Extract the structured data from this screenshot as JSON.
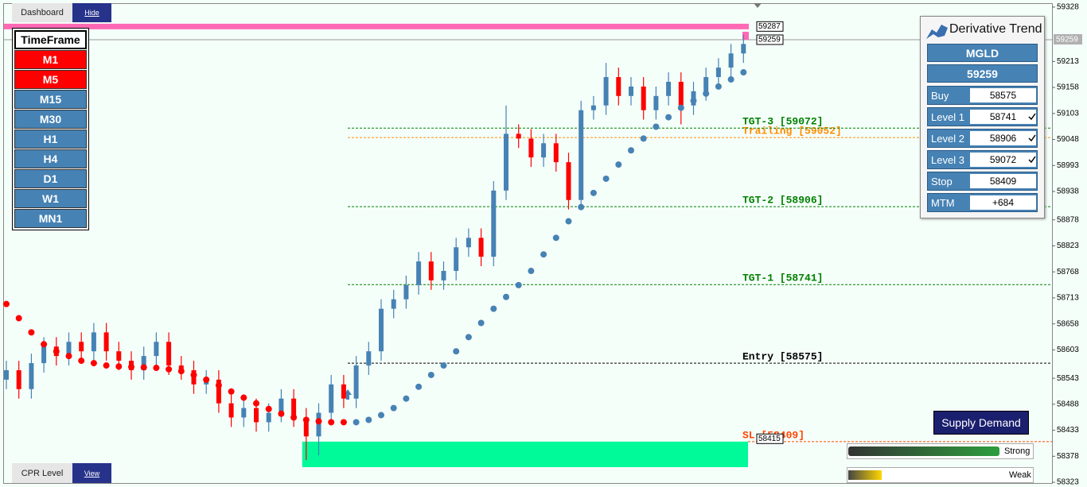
{
  "chart_data": {
    "type": "candlestick",
    "ylim": [
      58313,
      59343
    ],
    "yticks": [
      59328,
      59213,
      59158,
      59103,
      59048,
      58993,
      58938,
      58878,
      58823,
      58768,
      58713,
      58658,
      58603,
      58543,
      58488,
      58433,
      58378,
      58323
    ],
    "up_color": "#4682b4",
    "down_color": "#ff0000",
    "open": [
      58540,
      58560,
      58520,
      58575,
      58610,
      58590,
      58620,
      58600,
      58640,
      58600,
      58580,
      58560,
      58590,
      58620,
      58570,
      58560,
      58530,
      58540,
      58490,
      58460,
      58480,
      58450,
      58470,
      58500,
      58460,
      58420,
      58470,
      58530,
      58500,
      58570,
      58600,
      58690,
      58710,
      58740,
      58790,
      58750,
      58770,
      58820,
      58840,
      58800,
      58940,
      59060,
      59050,
      59010,
      59040,
      59000,
      58920,
      59110,
      59120,
      59180,
      59140,
      59160,
      59110,
      59140,
      59170,
      59120,
      59150,
      59180,
      59200,
      59230
    ],
    "high": [
      58580,
      58580,
      58595,
      58630,
      58630,
      58640,
      58640,
      58660,
      58660,
      58620,
      58600,
      58610,
      58640,
      58640,
      58590,
      58580,
      58560,
      58560,
      58510,
      58500,
      58500,
      58490,
      58520,
      58520,
      58480,
      58490,
      58550,
      58550,
      58590,
      58620,
      58710,
      58730,
      58760,
      58810,
      58810,
      58790,
      58840,
      58860,
      58860,
      58960,
      59120,
      59080,
      59070,
      59060,
      59060,
      59020,
      59130,
      59140,
      59210,
      59200,
      59180,
      59180,
      59160,
      59190,
      59190,
      59170,
      59200,
      59220,
      59250,
      59270
    ],
    "low": [
      58520,
      58500,
      58500,
      58555,
      58570,
      58570,
      58580,
      58580,
      58580,
      58560,
      58540,
      58540,
      58570,
      58550,
      58540,
      58510,
      58510,
      58470,
      58440,
      58440,
      58430,
      58430,
      58450,
      58440,
      58370,
      58380,
      58450,
      58480,
      58480,
      58550,
      58580,
      58670,
      58690,
      58720,
      58730,
      58730,
      58750,
      58800,
      58780,
      58780,
      58920,
      59030,
      58990,
      58990,
      58980,
      58900,
      58900,
      59090,
      59100,
      59120,
      59120,
      59090,
      59090,
      59120,
      59080,
      59100,
      59130,
      59160,
      59180,
      59210
    ],
    "close": [
      58560,
      58520,
      58575,
      58610,
      58590,
      58620,
      58600,
      58640,
      58600,
      58580,
      58560,
      58590,
      58620,
      58570,
      58560,
      58530,
      58540,
      58490,
      58460,
      58480,
      58450,
      58470,
      58500,
      58460,
      58420,
      58470,
      58530,
      58500,
      58570,
      58600,
      58690,
      58710,
      58740,
      58790,
      58750,
      58770,
      58820,
      58840,
      58800,
      58940,
      59060,
      59050,
      59010,
      59040,
      59000,
      58920,
      59110,
      59120,
      59180,
      59140,
      59160,
      59110,
      59140,
      59170,
      59120,
      59150,
      59180,
      59200,
      59230,
      59250
    ],
    "dots": [
      {
        "color": "#ff0000",
        "values": [
          58700,
          58670,
          58640,
          58615,
          58600,
          58590,
          58580,
          58575,
          58570,
          58568,
          58567,
          58566,
          58565,
          58562,
          58558,
          58550,
          58540,
          58528,
          58515,
          58502,
          58490,
          58478,
          58468,
          58460,
          58455,
          58452,
          58450,
          58450,
          null,
          null,
          null,
          null,
          null,
          null,
          null,
          null,
          null,
          null,
          null,
          null,
          null,
          null,
          null,
          null,
          null,
          null,
          null,
          null,
          null,
          null,
          null,
          null,
          null,
          null,
          null,
          null,
          null,
          null,
          null,
          null
        ]
      },
      {
        "color": "#4682b4",
        "values": [
          null,
          null,
          null,
          null,
          null,
          null,
          null,
          null,
          null,
          null,
          null,
          null,
          null,
          null,
          null,
          null,
          null,
          null,
          null,
          null,
          null,
          null,
          null,
          null,
          null,
          null,
          null,
          null,
          58450,
          58455,
          58465,
          58480,
          58500,
          58525,
          58550,
          58570,
          58600,
          58630,
          58660,
          58690,
          58715,
          58740,
          58770,
          58805,
          58840,
          58875,
          58905,
          58935,
          58965,
          58995,
          59025,
          59050,
          59075,
          59095,
          59115,
          59130,
          59145,
          59160,
          59175,
          59190
        ]
      }
    ],
    "levels": [
      {
        "name": "Trailing [59052]",
        "value": 59052,
        "color": "#ff8c00"
      },
      {
        "name": "TGT-3 [59072]",
        "value": 59072,
        "color": "#008000"
      },
      {
        "name": "TGT-2 [58906]",
        "value": 58906,
        "color": "#008000"
      },
      {
        "name": "TGT-1 [58741]",
        "value": 58741,
        "color": "#008000"
      },
      {
        "name": "Entry [58575]",
        "value": 58575,
        "color": "#000000"
      },
      {
        "name": "SL [58409]",
        "value": 58409,
        "color": "#ff4500"
      }
    ],
    "resistance": {
      "value": 59287,
      "color": "#ff69b4"
    },
    "zone": {
      "top": 58409,
      "bottom": 58355,
      "color": "#00fa9a"
    },
    "current_price": 59259,
    "price_tags": [
      59287,
      59259,
      58415
    ]
  },
  "dashboard": {
    "tab": "Dashboard",
    "action": "Hide"
  },
  "timeframe": {
    "title": "TimeFrame",
    "buttons": [
      {
        "label": "M1",
        "active": true
      },
      {
        "label": "M5",
        "active": true
      },
      {
        "label": "M15",
        "active": false
      },
      {
        "label": "M30",
        "active": false
      },
      {
        "label": "H1",
        "active": false
      },
      {
        "label": "H4",
        "active": false
      },
      {
        "label": "D1",
        "active": false
      },
      {
        "label": "W1",
        "active": false
      },
      {
        "label": "MN1",
        "active": false
      }
    ]
  },
  "cpr": {
    "tab": "CPR Level",
    "action": "View"
  },
  "panel": {
    "title": "Derivative Trend",
    "symbol": "MGLD",
    "price": 59259,
    "rows": [
      {
        "label": "Buy",
        "value": 58575,
        "checked": false
      },
      {
        "label": "Level 1",
        "value": 58741,
        "checked": true
      },
      {
        "label": "Level 2",
        "value": 58906,
        "checked": true
      },
      {
        "label": "Level 3",
        "value": 59072,
        "checked": true
      },
      {
        "label": "Stop",
        "value": 58409,
        "checked": false
      },
      {
        "label": "MTM",
        "value": "+684",
        "checked": false
      }
    ]
  },
  "supply_demand": "Supply Demand",
  "strength": {
    "strong": "Strong",
    "weak": "Weak"
  }
}
